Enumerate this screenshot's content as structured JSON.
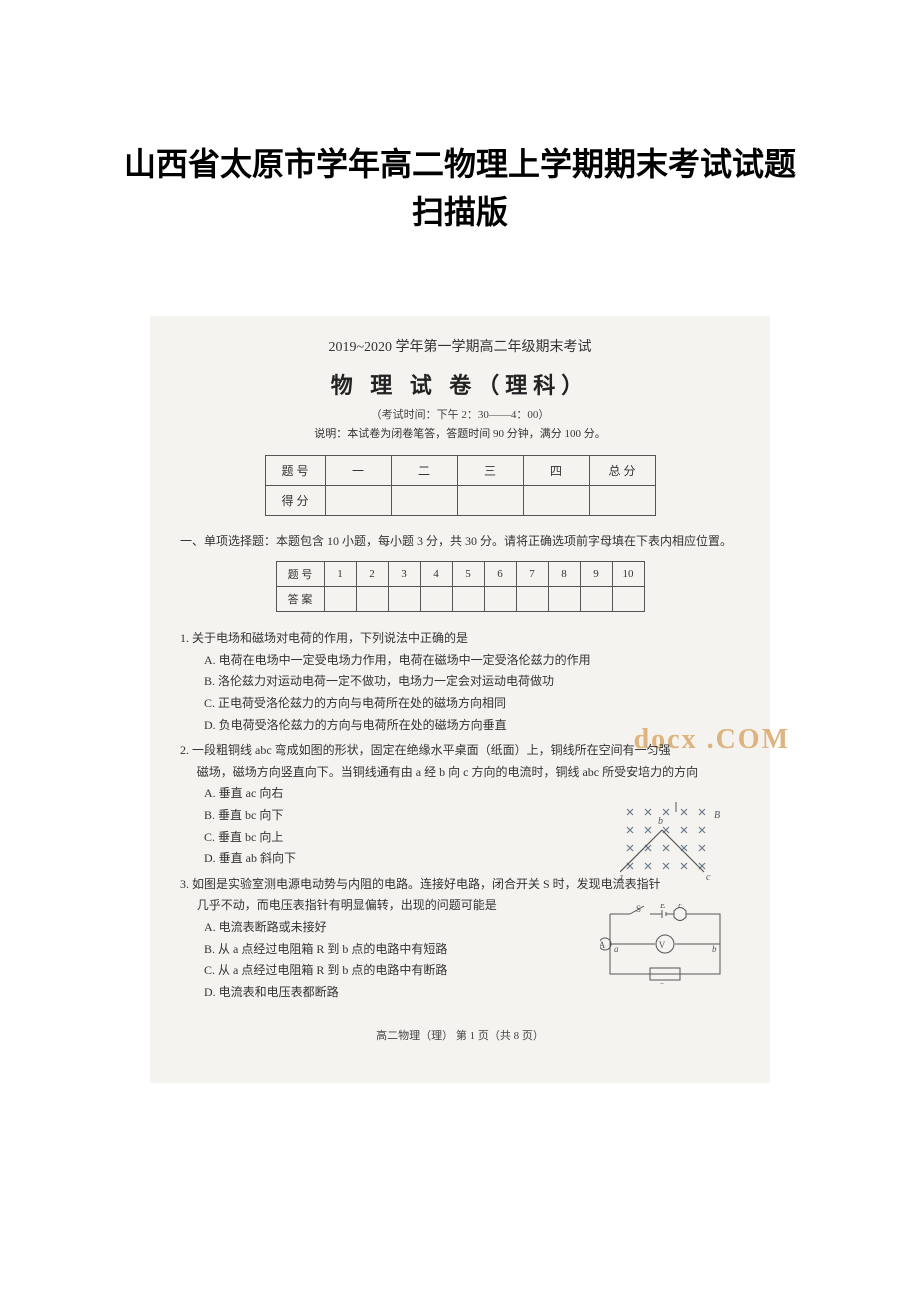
{
  "doc_title": "山西省太原市学年高二物理上学期期末考试试题扫描版",
  "exam_header": "2019~2020 学年第一学期高二年级期末考试",
  "exam_title": "物 理 试 卷（理科）",
  "exam_time": "（考试时间：下午 2：30——4：00）",
  "exam_note": "说明：本试卷为闭卷笔答，答题时间 90 分钟，满分 100 分。",
  "score_table": {
    "row1": [
      "题  号",
      "一",
      "二",
      "三",
      "四",
      "总  分"
    ],
    "row2_label": "得  分"
  },
  "section1": "一、单项选择题：本题包含 10 小题，每小题 3 分，共 30 分。请将正确选项前字母填在下表内相应位置。",
  "answer_table": {
    "row1": [
      "题  号",
      "1",
      "2",
      "3",
      "4",
      "5",
      "6",
      "7",
      "8",
      "9",
      "10"
    ],
    "row2_label": "答  案"
  },
  "q1": {
    "stem": "1. 关于电场和磁场对电荷的作用，下列说法中正确的是",
    "a": "A. 电荷在电场中一定受电场力作用，电荷在磁场中一定受洛伦兹力的作用",
    "b": "B. 洛伦兹力对运动电荷一定不做功，电场力一定会对运动电荷做功",
    "c": "C. 正电荷受洛伦兹力的方向与电荷所在处的磁场方向相同",
    "d": "D. 负电荷受洛伦兹力的方向与电荷所在处的磁场方向垂直"
  },
  "q2": {
    "stem1": "2. 一段粗铜线 abc 弯成如图的形状，固定在绝缘水平桌面（纸面）上，铜线所在空间有一匀强",
    "stem2": "磁场，磁场方向竖直向下。当铜线通有由 a 经 b 向 c 方向的电流时，铜线 abc 所受安培力的方向",
    "a": "A. 垂直 ac 向右",
    "b": "B. 垂直 bc 向下",
    "c": "C. 垂直 bc 向上",
    "d": "D. 垂直 ab 斜向下",
    "diagram": {
      "cross_color": "#6a7a8a",
      "line_color": "#555555",
      "rows": 4,
      "cols": 5,
      "spacing": 18,
      "labels": {
        "a": "a",
        "b": "b",
        "c": "c",
        "B": "B"
      }
    }
  },
  "q3": {
    "stem1": "3. 如图是实验室测电源电动势与内阻的电路。连接好电路，闭合开关 S 时，发现电流表指针",
    "stem2": "几乎不动，而电压表指针有明显偏转，出现的问题可能是",
    "a": "A. 电流表断路或未接好",
    "b": "B. 从 a 点经过电阻箱 R 到 b 点的电路中有短路",
    "c": "C. 从 a 点经过电阻箱 R 到 b 点的电路中有断路",
    "d": "D. 电流表和电压表都断路",
    "diagram": {
      "line_color": "#555555",
      "labels": {
        "S": "S",
        "E": "E",
        "r": "r",
        "a": "a",
        "b": "b",
        "R": "R",
        "V": "V",
        "A": "A"
      }
    }
  },
  "page_footer": "高二物理（理）  第 1 页（共 8 页）",
  "watermark": "docx .COM",
  "colors": {
    "text": "#333333",
    "border": "#555555",
    "scan_bg": "#f5f3f0",
    "watermark": "#d9a86b"
  }
}
